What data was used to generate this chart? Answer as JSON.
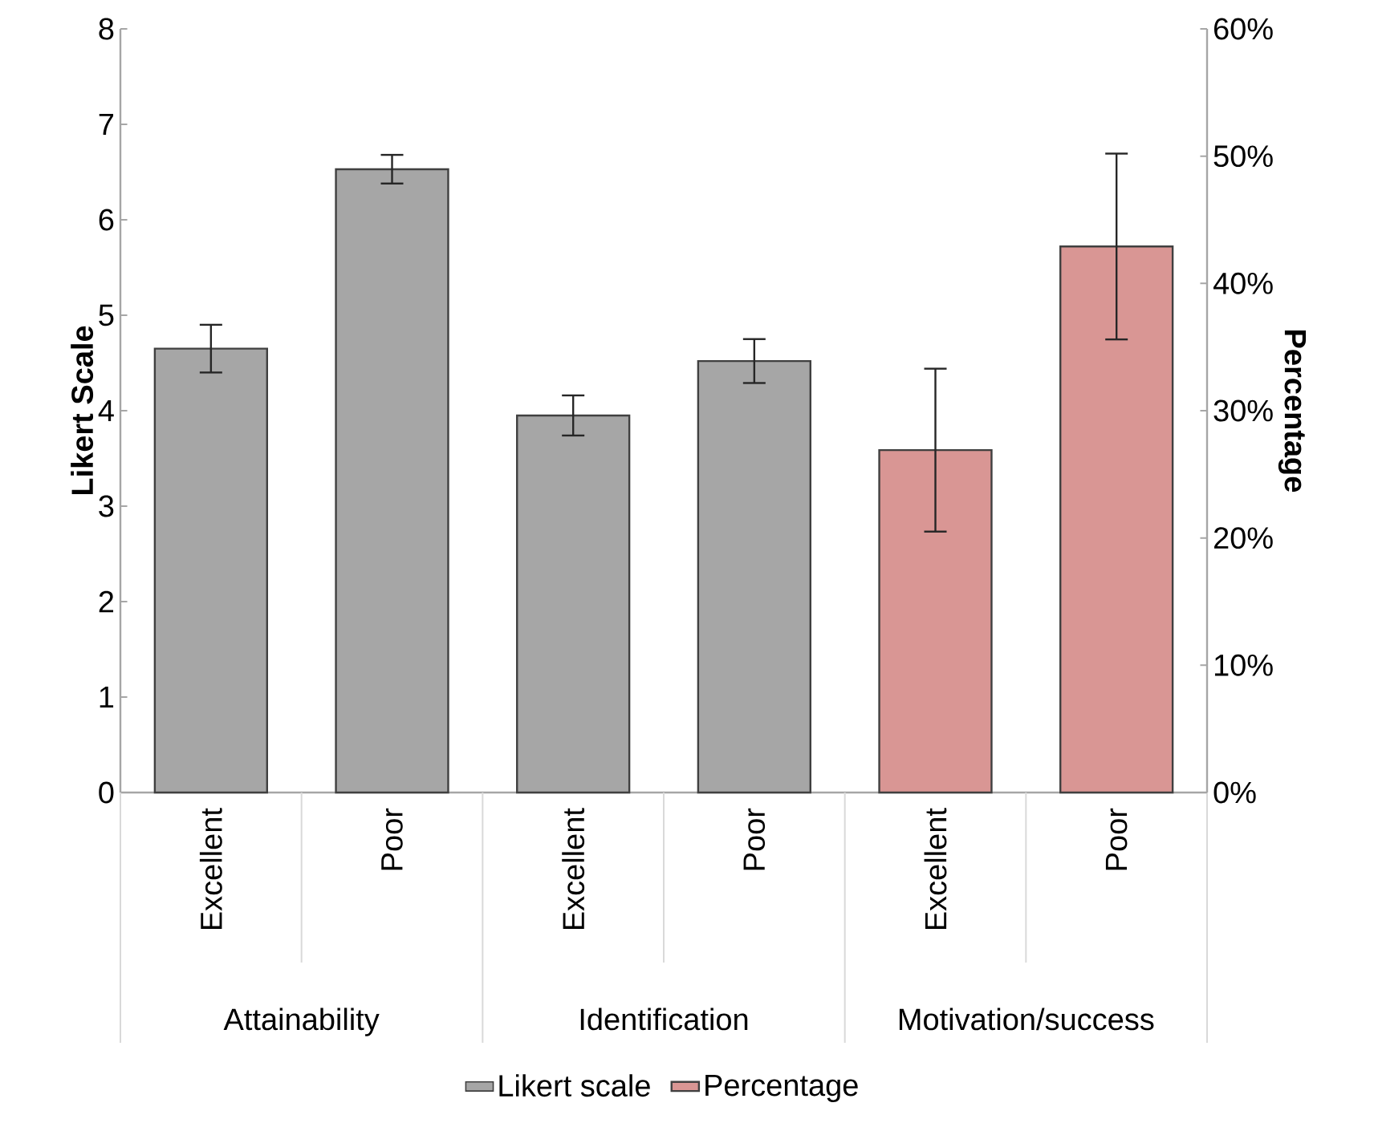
{
  "chart_data": {
    "type": "bar",
    "categories": [
      "Excellent",
      "Poor",
      "Excellent",
      "Poor",
      "Excellent",
      "Poor"
    ],
    "series": [
      {
        "name": "Likert scale",
        "color": "#a6a6a6",
        "values": [
          4.65,
          6.53,
          3.95,
          4.52,
          null,
          null
        ],
        "errors": [
          0.25,
          0.15,
          0.21,
          0.23,
          null,
          null
        ]
      },
      {
        "name": "Percentage",
        "color": "#d99694",
        "axis": "y2",
        "values": [
          null,
          null,
          null,
          null,
          26.9,
          42.9
        ],
        "errors": [
          null,
          null,
          null,
          null,
          6.4,
          7.3
        ]
      }
    ],
    "ylabel": "Likert Scale",
    "y2label": "Percentage",
    "ylim": [
      0,
      8
    ],
    "yticks": [
      0,
      1,
      2,
      3,
      4,
      5,
      6,
      7,
      8
    ],
    "y2lim": [
      0,
      60
    ],
    "y2ticks": [
      {
        "value": 0,
        "label": "0%"
      },
      {
        "value": 10,
        "label": "10%"
      },
      {
        "value": 20,
        "label": "20%"
      },
      {
        "value": 30,
        "label": "30%"
      },
      {
        "value": 40,
        "label": "40%"
      },
      {
        "value": 50,
        "label": "50%"
      },
      {
        "value": 60,
        "label": "60%"
      }
    ],
    "annotations": [
      "Attainability",
      "Identification",
      "Motivation/success"
    ],
    "legend": "bottom",
    "grid": false
  }
}
